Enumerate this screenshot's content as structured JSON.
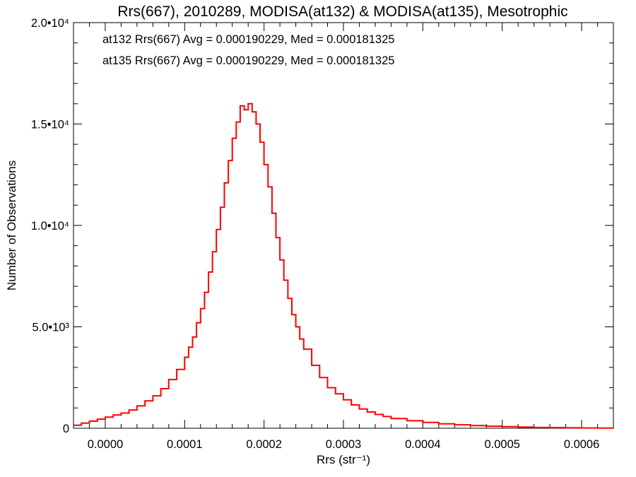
{
  "chart_data": {
    "type": "line",
    "title": "Rrs(667), 2010289, MODISA(at132) & MODISA(at135), Mesotrophic",
    "xlabel": "Rrs (str⁻¹)",
    "ylabel": "Number of Observations",
    "xlim": [
      -4e-05,
      0.00064
    ],
    "ylim": [
      0,
      20000
    ],
    "x_ticks": [
      {
        "value": 0.0,
        "label": "0.0000"
      },
      {
        "value": 0.0001,
        "label": "0.0001"
      },
      {
        "value": 0.0002,
        "label": "0.0002"
      },
      {
        "value": 0.0003,
        "label": "0.0003"
      },
      {
        "value": 0.0004,
        "label": "0.0004"
      },
      {
        "value": 0.0005,
        "label": "0.0005"
      },
      {
        "value": 0.0006,
        "label": "0.0006"
      }
    ],
    "y_ticks": [
      {
        "value": 0,
        "label": "0"
      },
      {
        "value": 5000,
        "label": "5.0•10³"
      },
      {
        "value": 10000,
        "label": "1.0•10⁴"
      },
      {
        "value": 15000,
        "label": "1.5•10⁴"
      },
      {
        "value": 20000,
        "label": "2.0•10⁴"
      }
    ],
    "annotations": [
      {
        "text": "at132 Rrs(667) Avg = 0.000190229, Med = 0.000181325",
        "color": "#000000"
      },
      {
        "text": "at135 Rrs(667) Avg = 0.000190229, Med = 0.000181325",
        "color": "#ff0000"
      }
    ],
    "series": [
      {
        "color": "#ff0000",
        "step": true,
        "x": [
          -4e-05,
          -3e-05,
          -2e-05,
          -1e-05,
          0.0,
          1e-05,
          2e-05,
          3e-05,
          4e-05,
          5e-05,
          6e-05,
          7e-05,
          8e-05,
          9e-05,
          0.0001,
          0.000105,
          0.00011,
          0.000115,
          0.00012,
          0.000125,
          0.00013,
          0.000135,
          0.00014,
          0.000145,
          0.00015,
          0.000155,
          0.00016,
          0.000165,
          0.00017,
          0.000175,
          0.00018,
          0.000185,
          0.00019,
          0.000195,
          0.0002,
          0.000205,
          0.00021,
          0.000215,
          0.00022,
          0.000225,
          0.00023,
          0.000235,
          0.00024,
          0.000245,
          0.00025,
          0.00026,
          0.00027,
          0.00028,
          0.00029,
          0.0003,
          0.00031,
          0.00032,
          0.00033,
          0.00034,
          0.00035,
          0.00036,
          0.00038,
          0.0004,
          0.00042,
          0.00044,
          0.00046,
          0.00048,
          0.0005,
          0.00052,
          0.00054,
          0.00056,
          0.00058,
          0.0006,
          0.00062,
          0.00064
        ],
        "y": [
          150,
          250,
          350,
          450,
          550,
          650,
          750,
          900,
          1100,
          1350,
          1600,
          1950,
          2400,
          2900,
          3500,
          4000,
          4500,
          5200,
          5900,
          6700,
          7700,
          8700,
          9800,
          10900,
          12100,
          13200,
          14300,
          15100,
          15900,
          15700,
          16000,
          15600,
          15000,
          14100,
          13000,
          11900,
          10600,
          9400,
          8300,
          7300,
          6400,
          5600,
          5000,
          4400,
          3900,
          3100,
          2500,
          2000,
          1700,
          1400,
          1150,
          950,
          800,
          680,
          580,
          480,
          370,
          290,
          220,
          170,
          130,
          100,
          75,
          55,
          40,
          30,
          22,
          15,
          10,
          5
        ]
      }
    ]
  }
}
